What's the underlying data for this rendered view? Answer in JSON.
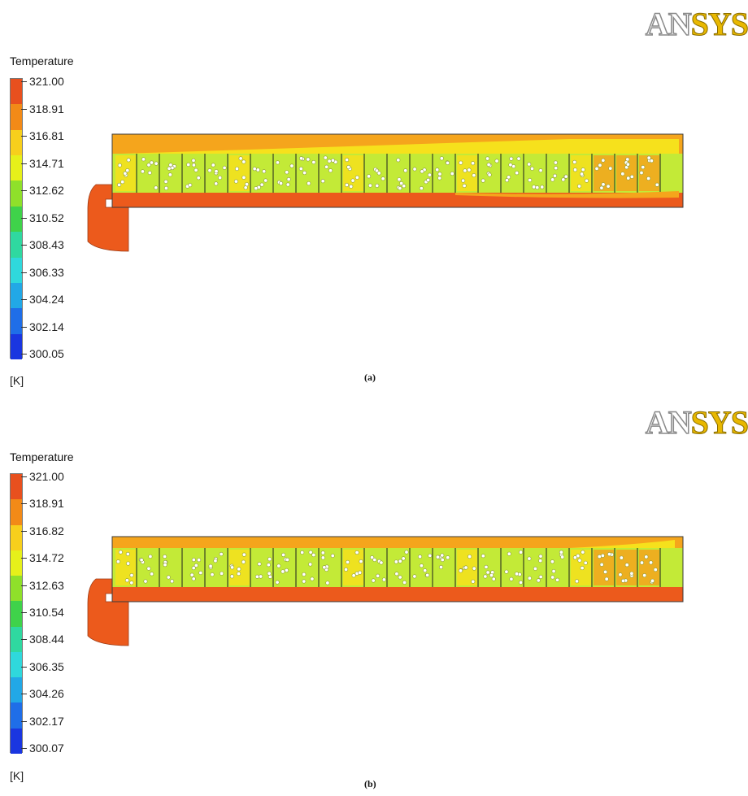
{
  "logo": {
    "part1": "AN",
    "part2": "SYS"
  },
  "panels": [
    {
      "id": "a",
      "legend_title": "Temperature",
      "unit": "[K]",
      "caption": "(a)",
      "ticks": [
        "321.00",
        "318.91",
        "316.81",
        "314.71",
        "312.62",
        "310.52",
        "308.43",
        "306.33",
        "304.24",
        "302.14",
        "300.05"
      ]
    },
    {
      "id": "b",
      "legend_title": "Temperature",
      "unit": "[K]",
      "caption": "(b)",
      "ticks": [
        "321.00",
        "318.91",
        "316.82",
        "314.72",
        "312.63",
        "310.54",
        "308.44",
        "306.35",
        "304.26",
        "302.17",
        "300.07"
      ]
    }
  ],
  "colormap": [
    "#e8501e",
    "#f28a17",
    "#f7cf1c",
    "#e6f01a",
    "#8fe02a",
    "#3fd24a",
    "#2fd8a0",
    "#2fd8dc",
    "#22a8e6",
    "#1f6ee8",
    "#1a36e0"
  ],
  "field_colors": {
    "hot": "#ec5a1c",
    "warm": "#f5a51c",
    "mid": "#f6e11c",
    "cool": "#c3ea37",
    "outline": "#3a3a3a"
  }
}
